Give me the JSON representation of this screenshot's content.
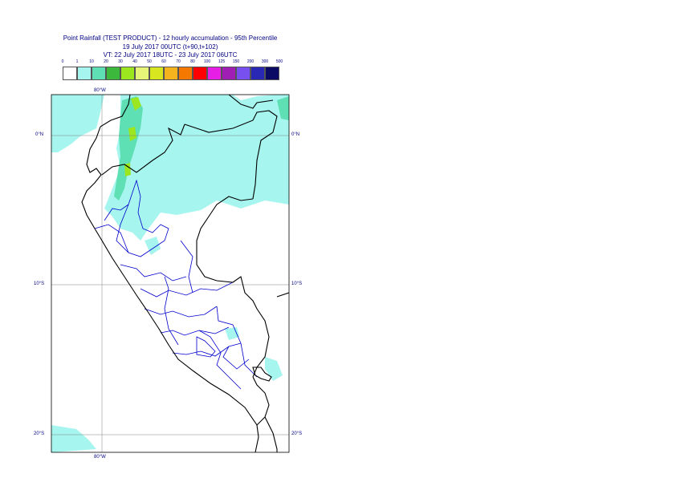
{
  "title": {
    "line1": "Point Rainfall (TEST PRODUCT) - 12 hourly accumulation - 95th Percentile",
    "line2": "19 July 2017 00UTC (t+90,t+102)",
    "line3": "VT: 22 July 2017 18UTC - 23 July 2017 06UTC"
  },
  "legend": {
    "thresholds": [
      "0",
      "1",
      "10",
      "20",
      "30",
      "40",
      "50",
      "60",
      "70",
      "80",
      "100",
      "125",
      "150",
      "200",
      "300",
      "500"
    ],
    "colors": [
      "#ffffff",
      "#a6f5ef",
      "#5fe0b4",
      "#3cb83c",
      "#9be61e",
      "#e6f578",
      "#d7e61e",
      "#f5b41e",
      "#f57800",
      "#ff0000",
      "#e61ee6",
      "#a01eb4",
      "#7850f0",
      "#2828b4",
      "#0a0a64"
    ]
  },
  "axes": {
    "lon_top": "80°W",
    "lon_bottom": "80°W",
    "lat_left": [
      "0°N",
      "10°S",
      "20°S"
    ],
    "lat_right": [
      "0°N",
      "10°S",
      "20°S"
    ]
  },
  "colors": {
    "coastline": "#000000",
    "internal_boundaries": "#0000cd",
    "gridlines": "#808080",
    "rain_light": "#a6f5ef",
    "rain_moderate": "#5fe0b4",
    "rain_heavy": "#9be61e"
  }
}
